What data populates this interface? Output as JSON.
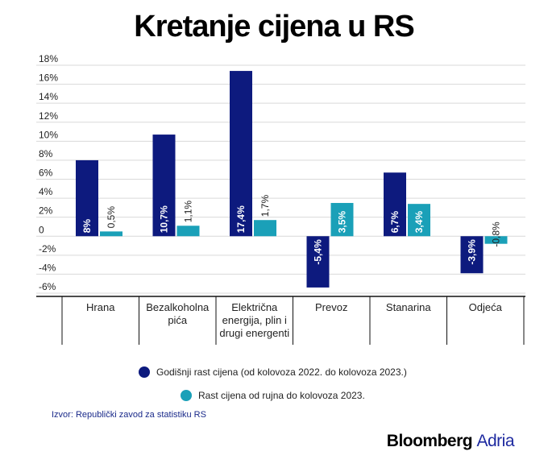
{
  "title": "Kretanje cijena u RS",
  "chart_data": {
    "type": "bar",
    "title": "Kretanje cijena u RS",
    "categories": [
      "Hrana",
      "Bezalkoholna pića",
      "Električna energija, plin i drugi energenti",
      "Prevoz",
      "Stanarina",
      "Odjeća"
    ],
    "category_lines": [
      [
        "Hrana"
      ],
      [
        "Bezalkoholna",
        "pića"
      ],
      [
        "Električna",
        "energija, plin i",
        "drugi energenti"
      ],
      [
        "Prevoz"
      ],
      [
        "Stanarina"
      ],
      [
        "Odjeća"
      ]
    ],
    "series": [
      {
        "name": "Godišnji rast cijena (od kolovoza 2022. do kolovoza 2023.)",
        "color": "#0d1a7e",
        "values": [
          8.0,
          10.7,
          17.4,
          -5.4,
          6.7,
          -3.9
        ],
        "labels": [
          "8%",
          "10,7%",
          "17,4%",
          "-5,4%",
          "6,7%",
          "-3,9%"
        ]
      },
      {
        "name": "Rast cijena od rujna do kolovoza 2023.",
        "color": "#1aa0b8",
        "values": [
          0.5,
          1.1,
          1.7,
          3.5,
          3.4,
          -0.8
        ],
        "labels": [
          "0,5%",
          "1,1%",
          "1,7%",
          "3,5%",
          "3,4%",
          "-0,8%"
        ]
      }
    ],
    "ylim": [
      -6,
      18
    ],
    "yticks": [
      -6,
      -4,
      -2,
      0,
      2,
      4,
      6,
      8,
      10,
      12,
      14,
      16,
      18
    ],
    "ytick_labels": [
      "-6%",
      "-4%",
      "-2%",
      "0",
      "2%",
      "4%",
      "6%",
      "8%",
      "10%",
      "12%",
      "14%",
      "16%",
      "18%"
    ],
    "grid": true,
    "legend_position": "bottom-center"
  },
  "legend": [
    {
      "label": "Godišnji rast cijena (od kolovoza 2022. do kolovoza 2023.)",
      "color": "#0d1a7e"
    },
    {
      "label": "Rast cijena od rujna do kolovoza 2023.",
      "color": "#1aa0b8"
    }
  ],
  "source": "Izvor: Republički zavod za statistiku RS",
  "brand": {
    "part1": "Bloomberg",
    "part2": "Adria"
  }
}
